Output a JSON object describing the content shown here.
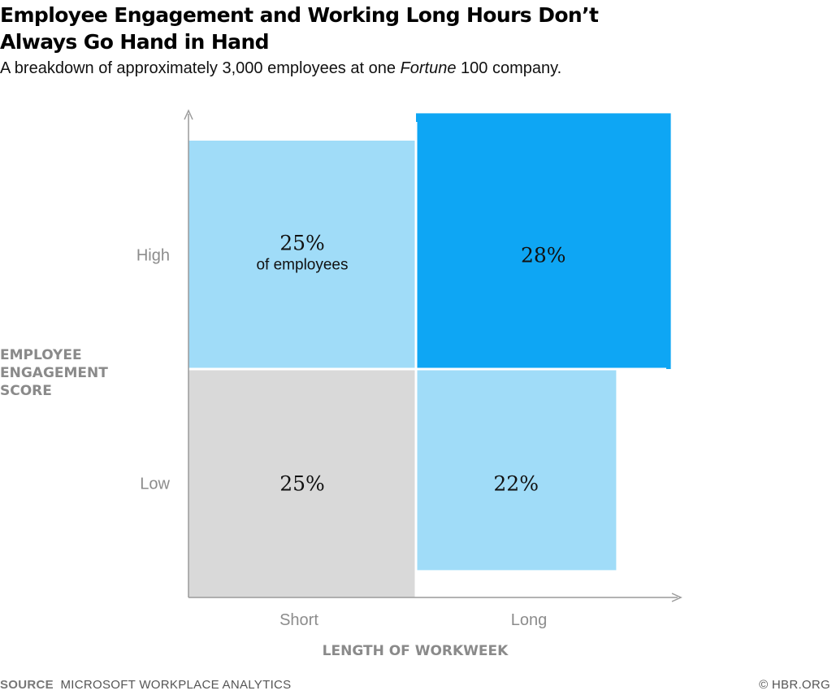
{
  "header": {
    "title": "Employee Engagement and Working Long Hours Don’t Always Go Hand in Hand",
    "subtitle_before": "A breakdown of approximately 3,000 employees at one ",
    "subtitle_em": "Fortune",
    "subtitle_after": " 100 company."
  },
  "chart_data": {
    "type": "heatmap",
    "title": "Employee Engagement and Working Long Hours Don’t Always Go Hand in Hand",
    "subtitle": "A breakdown of approximately 3,000 employees at one Fortune 100 company.",
    "xlabel": "LENGTH OF WORKWEEK",
    "ylabel": [
      "EMPLOYEE",
      "ENGAGEMENT",
      "SCORE"
    ],
    "x_categories": [
      "Short",
      "Long"
    ],
    "y_categories": [
      "Low",
      "High"
    ],
    "cells": [
      {
        "x": "Short",
        "y": "High",
        "value": 25,
        "label": "25%",
        "sublabel": "of employees",
        "color": "#a0dcf8"
      },
      {
        "x": "Long",
        "y": "High",
        "value": 28,
        "label": "28%",
        "sublabel": "",
        "color": "#0ea6f4"
      },
      {
        "x": "Short",
        "y": "Low",
        "value": 25,
        "label": "25%",
        "sublabel": "",
        "color": "#d9d9d9"
      },
      {
        "x": "Long",
        "y": "Low",
        "value": 22,
        "label": "22%",
        "sublabel": "",
        "color": "#a0dcf8"
      }
    ],
    "reference_value": 25,
    "colors": {
      "axis": "#9a9a9a",
      "grid_divider": "#ffffff"
    }
  },
  "footer": {
    "source_label": "SOURCE",
    "source_text": "MICROSOFT WORKPLACE ANALYTICS",
    "credit": "© HBR.ORG"
  }
}
